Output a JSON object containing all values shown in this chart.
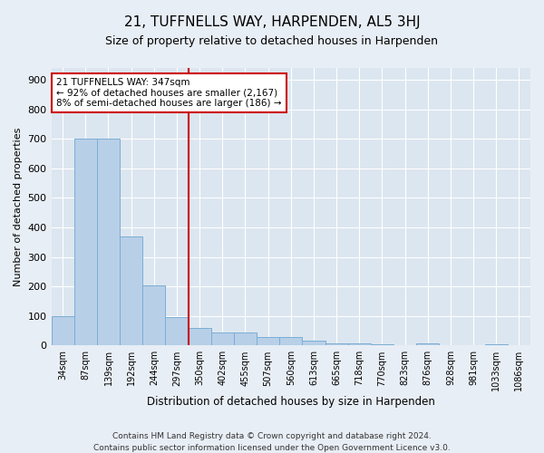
{
  "title": "21, TUFFNELLS WAY, HARPENDEN, AL5 3HJ",
  "subtitle": "Size of property relative to detached houses in Harpenden",
  "xlabel": "Distribution of detached houses by size in Harpenden",
  "ylabel": "Number of detached properties",
  "bins": [
    "34sqm",
    "87sqm",
    "139sqm",
    "192sqm",
    "244sqm",
    "297sqm",
    "350sqm",
    "402sqm",
    "455sqm",
    "507sqm",
    "560sqm",
    "613sqm",
    "665sqm",
    "718sqm",
    "770sqm",
    "823sqm",
    "876sqm",
    "928sqm",
    "981sqm",
    "1033sqm",
    "1086sqm"
  ],
  "values": [
    100,
    700,
    700,
    370,
    205,
    95,
    60,
    45,
    45,
    30,
    30,
    15,
    8,
    8,
    5,
    0,
    8,
    0,
    0,
    5,
    0
  ],
  "bar_color": "#b8cfe8",
  "bar_edge_color": "#7aadd4",
  "vline_x": 5.5,
  "vline_color": "#cc0000",
  "annotation_text": "21 TUFFNELLS WAY: 347sqm\n← 92% of detached houses are smaller (2,167)\n8% of semi-detached houses are larger (186) →",
  "annotation_box_color": "white",
  "annotation_box_edge": "#cc0000",
  "ylim": [
    0,
    940
  ],
  "yticks": [
    0,
    100,
    200,
    300,
    400,
    500,
    600,
    700,
    800,
    900
  ],
  "footer1": "Contains HM Land Registry data © Crown copyright and database right 2024.",
  "footer2": "Contains public sector information licensed under the Open Government Licence v3.0.",
  "bg_color": "#e8eef5",
  "plot_bg_color": "#dce6f0",
  "title_fontsize": 11,
  "subtitle_fontsize": 9
}
